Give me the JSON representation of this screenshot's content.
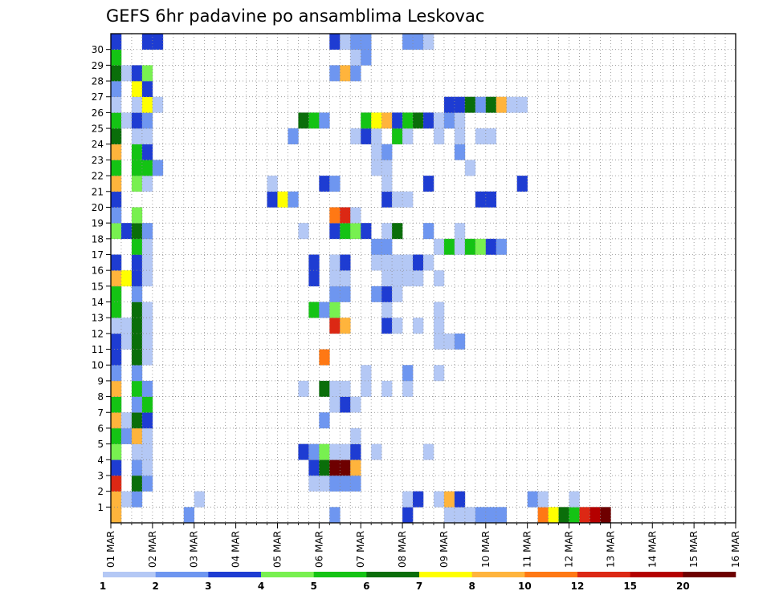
{
  "chart_data": {
    "type": "heatmap",
    "title": "GEFS 6hr padavine po ansamblima Leskovac",
    "x": {
      "labels": [
        "01 MAR",
        "02 MAR",
        "03 MAR",
        "04 MAR",
        "05 MAR",
        "06 MAR",
        "07 MAR",
        "08 MAR",
        "09 MAR",
        "10 MAR",
        "11 MAR",
        "12 MAR",
        "13 MAR",
        "14 MAR",
        "15 MAR",
        "16 MAR"
      ],
      "steps_per_day": 4,
      "n_columns": 60
    },
    "y": {
      "labels": [
        "1",
        "2",
        "3",
        "4",
        "5",
        "6",
        "7",
        "8",
        "9",
        "10",
        "11",
        "12",
        "13",
        "14",
        "15",
        "16",
        "17",
        "18",
        "19",
        "20",
        "21",
        "22",
        "23",
        "24",
        "25",
        "26",
        "27",
        "28",
        "29",
        "30"
      ],
      "n_rows": 31
    },
    "grid": "dotted",
    "colorbar": {
      "position": "bottom",
      "labels": [
        "1",
        "2",
        "3",
        "4",
        "5",
        "6",
        "7",
        "8",
        "10",
        "12",
        "15",
        "20"
      ],
      "colors": [
        "#b4c8f5",
        "#6e96f0",
        "#1e3cd2",
        "#78f050",
        "#14c314",
        "#0a6e0a",
        "#ffff00",
        "#ffb43c",
        "#ff7814",
        "#dc2814",
        "#b40000",
        "#6e0000"
      ]
    },
    "levels_note": "cell values are colorbar class indices 1-12",
    "rows": [
      {
        "member": 0,
        "cells": [
          [
            0,
            8
          ],
          [
            7,
            2
          ],
          [
            21,
            2
          ],
          [
            28,
            3
          ],
          [
            32,
            1
          ],
          [
            33,
            1
          ],
          [
            34,
            1
          ],
          [
            35,
            2
          ],
          [
            36,
            2
          ],
          [
            37,
            2
          ],
          [
            41,
            9
          ],
          [
            42,
            7
          ],
          [
            43,
            6
          ],
          [
            44,
            5
          ],
          [
            45,
            10
          ],
          [
            46,
            11
          ],
          [
            47,
            12
          ]
        ]
      },
      {
        "member": 1,
        "cells": [
          [
            0,
            8
          ],
          [
            1,
            1
          ],
          [
            2,
            2
          ],
          [
            8,
            1
          ],
          [
            28,
            1
          ],
          [
            29,
            3
          ],
          [
            31,
            1
          ],
          [
            32,
            8
          ],
          [
            33,
            3
          ],
          [
            40,
            2
          ],
          [
            41,
            1
          ],
          [
            44,
            1
          ]
        ]
      },
      {
        "member": 2,
        "cells": [
          [
            0,
            10
          ],
          [
            2,
            6
          ],
          [
            3,
            2
          ],
          [
            19,
            1
          ],
          [
            20,
            1
          ],
          [
            21,
            2
          ],
          [
            22,
            2
          ],
          [
            23,
            2
          ]
        ]
      },
      {
        "member": 3,
        "cells": [
          [
            0,
            3
          ],
          [
            2,
            2
          ],
          [
            3,
            1
          ],
          [
            19,
            3
          ],
          [
            20,
            6
          ],
          [
            21,
            12
          ],
          [
            22,
            12
          ],
          [
            23,
            8
          ]
        ]
      },
      {
        "member": 4,
        "cells": [
          [
            0,
            4
          ],
          [
            2,
            1
          ],
          [
            3,
            1
          ],
          [
            18,
            3
          ],
          [
            19,
            2
          ],
          [
            20,
            4
          ],
          [
            21,
            1
          ],
          [
            22,
            1
          ],
          [
            23,
            3
          ],
          [
            25,
            1
          ],
          [
            30,
            1
          ]
        ]
      },
      {
        "member": 5,
        "cells": [
          [
            0,
            5
          ],
          [
            1,
            2
          ],
          [
            2,
            8
          ],
          [
            3,
            1
          ],
          [
            23,
            1
          ]
        ]
      },
      {
        "member": 6,
        "cells": [
          [
            0,
            8
          ],
          [
            1,
            1
          ],
          [
            2,
            6
          ],
          [
            3,
            3
          ],
          [
            20,
            2
          ]
        ]
      },
      {
        "member": 7,
        "cells": [
          [
            0,
            5
          ],
          [
            2,
            2
          ],
          [
            3,
            5
          ],
          [
            21,
            1
          ],
          [
            22,
            3
          ],
          [
            23,
            1
          ]
        ]
      },
      {
        "member": 8,
        "cells": [
          [
            0,
            8
          ],
          [
            2,
            5
          ],
          [
            3,
            2
          ],
          [
            18,
            1
          ],
          [
            20,
            6
          ],
          [
            21,
            1
          ],
          [
            22,
            1
          ],
          [
            24,
            1
          ],
          [
            26,
            1
          ],
          [
            28,
            1
          ]
        ]
      },
      {
        "member": 9,
        "cells": [
          [
            0,
            2
          ],
          [
            2,
            2
          ],
          [
            24,
            1
          ],
          [
            28,
            2
          ],
          [
            31,
            1
          ]
        ]
      },
      {
        "member": 10,
        "cells": [
          [
            0,
            3
          ],
          [
            2,
            6
          ],
          [
            3,
            1
          ],
          [
            20,
            9
          ]
        ]
      },
      {
        "member": 11,
        "cells": [
          [
            0,
            3
          ],
          [
            1,
            1
          ],
          [
            2,
            6
          ],
          [
            3,
            1
          ],
          [
            31,
            1
          ],
          [
            32,
            1
          ],
          [
            33,
            2
          ]
        ]
      },
      {
        "member": 12,
        "cells": [
          [
            0,
            1
          ],
          [
            1,
            1
          ],
          [
            2,
            6
          ],
          [
            3,
            1
          ],
          [
            21,
            10
          ],
          [
            22,
            8
          ],
          [
            26,
            3
          ],
          [
            27,
            1
          ],
          [
            29,
            1
          ],
          [
            31,
            1
          ]
        ]
      },
      {
        "member": 13,
        "cells": [
          [
            0,
            5
          ],
          [
            2,
            6
          ],
          [
            3,
            1
          ],
          [
            19,
            5
          ],
          [
            20,
            2
          ],
          [
            21,
            4
          ],
          [
            26,
            1
          ],
          [
            31,
            1
          ]
        ]
      },
      {
        "member": 14,
        "cells": [
          [
            0,
            5
          ],
          [
            2,
            2
          ],
          [
            21,
            2
          ],
          [
            22,
            2
          ],
          [
            25,
            2
          ],
          [
            26,
            3
          ],
          [
            27,
            1
          ]
        ]
      },
      {
        "member": 15,
        "cells": [
          [
            0,
            8
          ],
          [
            1,
            7
          ],
          [
            2,
            3
          ],
          [
            3,
            1
          ],
          [
            19,
            3
          ],
          [
            21,
            1
          ],
          [
            22,
            1
          ],
          [
            26,
            1
          ],
          [
            27,
            1
          ],
          [
            28,
            1
          ],
          [
            29,
            1
          ],
          [
            31,
            1
          ]
        ]
      },
      {
        "member": 16,
        "cells": [
          [
            0,
            3
          ],
          [
            2,
            3
          ],
          [
            3,
            1
          ],
          [
            19,
            3
          ],
          [
            21,
            1
          ],
          [
            22,
            3
          ],
          [
            25,
            1
          ],
          [
            26,
            1
          ],
          [
            27,
            1
          ],
          [
            28,
            1
          ],
          [
            29,
            3
          ],
          [
            30,
            1
          ]
        ]
      },
      {
        "member": 17,
        "cells": [
          [
            2,
            5
          ],
          [
            3,
            1
          ],
          [
            25,
            2
          ],
          [
            26,
            2
          ],
          [
            31,
            1
          ],
          [
            32,
            5
          ],
          [
            33,
            1
          ],
          [
            34,
            5
          ],
          [
            35,
            4
          ],
          [
            36,
            3
          ],
          [
            37,
            2
          ]
        ]
      },
      {
        "member": 18,
        "cells": [
          [
            0,
            4
          ],
          [
            1,
            3
          ],
          [
            2,
            6
          ],
          [
            3,
            2
          ],
          [
            18,
            1
          ],
          [
            21,
            3
          ],
          [
            22,
            5
          ],
          [
            23,
            4
          ],
          [
            24,
            3
          ],
          [
            26,
            1
          ],
          [
            27,
            6
          ],
          [
            30,
            2
          ],
          [
            33,
            1
          ]
        ]
      },
      {
        "member": 19,
        "cells": [
          [
            0,
            2
          ],
          [
            2,
            4
          ],
          [
            21,
            9
          ],
          [
            22,
            10
          ],
          [
            23,
            1
          ]
        ]
      },
      {
        "member": 20,
        "cells": [
          [
            0,
            3
          ],
          [
            15,
            3
          ],
          [
            16,
            7
          ],
          [
            17,
            2
          ],
          [
            26,
            3
          ],
          [
            27,
            1
          ],
          [
            28,
            1
          ],
          [
            35,
            3
          ],
          [
            36,
            3
          ]
        ]
      },
      {
        "member": 21,
        "cells": [
          [
            0,
            8
          ],
          [
            2,
            4
          ],
          [
            3,
            1
          ],
          [
            15,
            1
          ],
          [
            20,
            3
          ],
          [
            21,
            2
          ],
          [
            26,
            1
          ],
          [
            30,
            3
          ],
          [
            39,
            3
          ]
        ]
      },
      {
        "member": 22,
        "cells": [
          [
            0,
            5
          ],
          [
            2,
            5
          ],
          [
            3,
            5
          ],
          [
            4,
            2
          ],
          [
            25,
            1
          ],
          [
            26,
            1
          ],
          [
            34,
            1
          ]
        ]
      },
      {
        "member": 23,
        "cells": [
          [
            0,
            8
          ],
          [
            2,
            5
          ],
          [
            3,
            3
          ],
          [
            25,
            1
          ],
          [
            26,
            2
          ],
          [
            33,
            2
          ]
        ]
      },
      {
        "member": 24,
        "cells": [
          [
            0,
            6
          ],
          [
            2,
            1
          ],
          [
            3,
            1
          ],
          [
            17,
            2
          ],
          [
            23,
            1
          ],
          [
            24,
            3
          ],
          [
            25,
            1
          ],
          [
            27,
            5
          ],
          [
            28,
            1
          ],
          [
            31,
            1
          ],
          [
            33,
            1
          ],
          [
            35,
            1
          ],
          [
            36,
            1
          ]
        ]
      },
      {
        "member": 25,
        "cells": [
          [
            0,
            5
          ],
          [
            1,
            1
          ],
          [
            2,
            3
          ],
          [
            3,
            2
          ],
          [
            18,
            6
          ],
          [
            19,
            5
          ],
          [
            20,
            2
          ],
          [
            24,
            5
          ],
          [
            25,
            7
          ],
          [
            26,
            8
          ],
          [
            27,
            3
          ],
          [
            28,
            5
          ],
          [
            29,
            6
          ],
          [
            30,
            3
          ],
          [
            31,
            1
          ],
          [
            32,
            2
          ],
          [
            33,
            1
          ]
        ]
      },
      {
        "member": 26,
        "cells": [
          [
            0,
            1
          ],
          [
            2,
            1
          ],
          [
            3,
            7
          ],
          [
            4,
            1
          ],
          [
            32,
            3
          ],
          [
            33,
            3
          ],
          [
            34,
            6
          ],
          [
            35,
            2
          ],
          [
            36,
            6
          ],
          [
            37,
            8
          ],
          [
            38,
            1
          ],
          [
            39,
            1
          ]
        ]
      },
      {
        "member": 27,
        "cells": [
          [
            0,
            2
          ],
          [
            2,
            7
          ],
          [
            3,
            3
          ]
        ]
      },
      {
        "member": 28,
        "cells": [
          [
            0,
            6
          ],
          [
            1,
            1
          ],
          [
            2,
            3
          ],
          [
            3,
            4
          ],
          [
            21,
            2
          ],
          [
            22,
            8
          ],
          [
            23,
            2
          ]
        ]
      },
      {
        "member": 29,
        "cells": [
          [
            0,
            5
          ],
          [
            23,
            1
          ],
          [
            24,
            2
          ]
        ]
      },
      {
        "member": 30,
        "cells": [
          [
            0,
            3
          ],
          [
            3,
            3
          ],
          [
            4,
            3
          ],
          [
            21,
            3
          ],
          [
            22,
            1
          ],
          [
            23,
            2
          ],
          [
            24,
            2
          ],
          [
            28,
            2
          ],
          [
            29,
            2
          ],
          [
            30,
            1
          ]
        ]
      }
    ]
  }
}
